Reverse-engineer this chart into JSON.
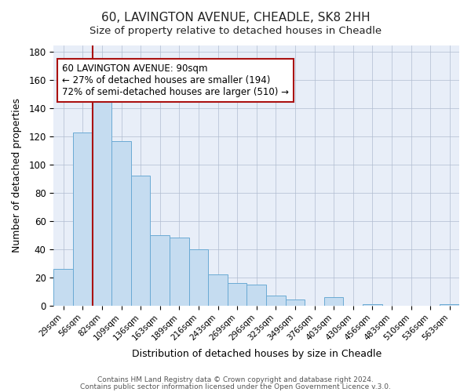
{
  "title": "60, LAVINGTON AVENUE, CHEADLE, SK8 2HH",
  "subtitle": "Size of property relative to detached houses in Cheadle",
  "xlabel": "Distribution of detached houses by size in Cheadle",
  "ylabel": "Number of detached properties",
  "ylim": [
    0,
    185
  ],
  "yticks": [
    0,
    20,
    40,
    60,
    80,
    100,
    120,
    140,
    160,
    180
  ],
  "bar_color": "#c5dcf0",
  "bar_edge_color": "#6aaad4",
  "highlight_line_color": "#aa1111",
  "annotation_title": "60 LAVINGTON AVENUE: 90sqm",
  "annotation_line1": "← 27% of detached houses are smaller (194)",
  "annotation_line2": "72% of semi-detached houses are larger (510) →",
  "footer1": "Contains HM Land Registry data © Crown copyright and database right 2024.",
  "footer2": "Contains public sector information licensed under the Open Government Licence v.3.0.",
  "fig_bg_color": "#ffffff",
  "plot_bg_color": "#e8eef8",
  "all_bar_labels": [
    "29sqm",
    "56sqm",
    "82sqm",
    "109sqm",
    "136sqm",
    "163sqm",
    "189sqm",
    "216sqm",
    "243sqm",
    "269sqm",
    "296sqm",
    "323sqm",
    "349sqm",
    "376sqm",
    "403sqm",
    "430sqm",
    "456sqm",
    "483sqm",
    "510sqm",
    "536sqm",
    "563sqm"
  ],
  "all_bar_values": [
    26,
    123,
    150,
    117,
    92,
    50,
    48,
    40,
    22,
    16,
    15,
    7,
    4,
    0,
    6,
    0,
    1,
    0,
    0,
    0,
    1
  ],
  "red_line_x": 1.5
}
